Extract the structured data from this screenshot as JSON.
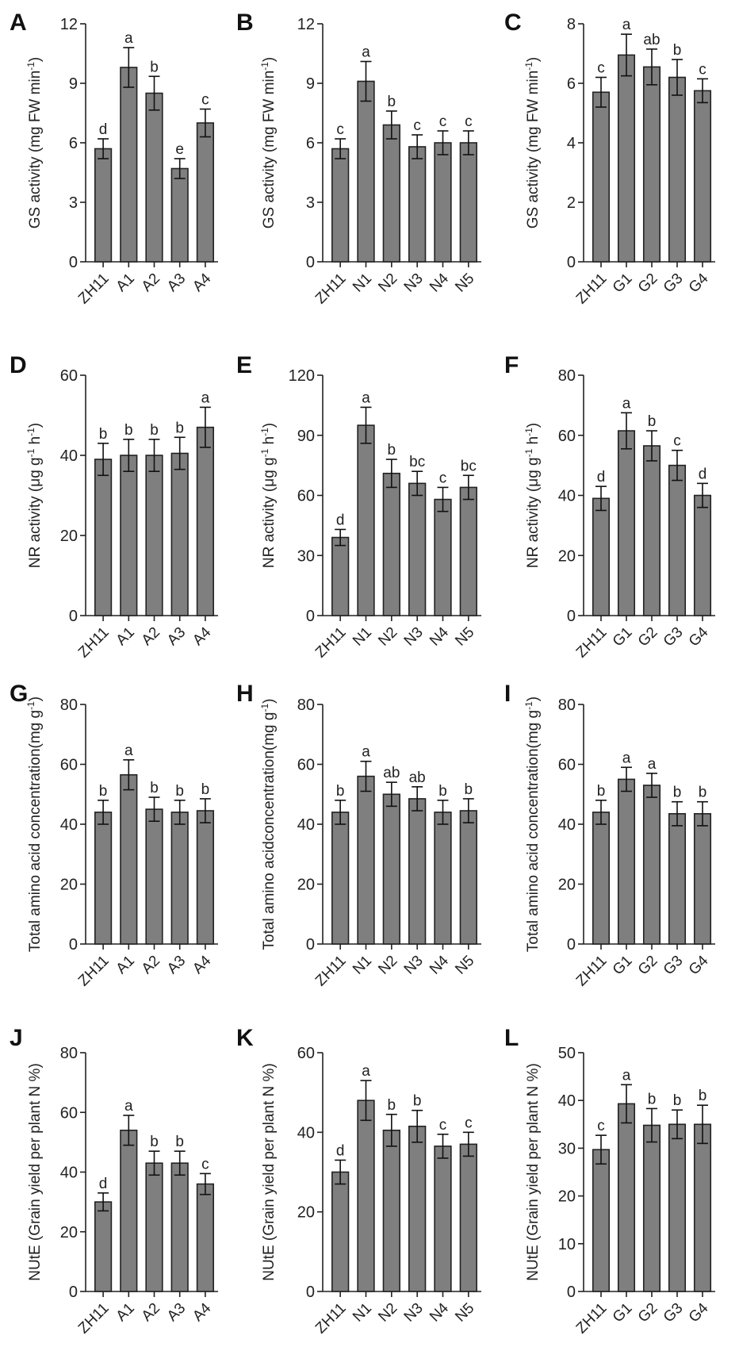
{
  "chart_data": [
    {
      "panel": "A",
      "type": "bar",
      "ylabel": "GS activity (mg FW min",
      "ylabel_sup": "-1",
      "ylabel_tail": ")",
      "categories": [
        "ZH11",
        "A1",
        "A2",
        "A3",
        "A4"
      ],
      "values": [
        5.7,
        9.8,
        8.5,
        4.7,
        7.0
      ],
      "errors": [
        0.5,
        1.0,
        0.85,
        0.5,
        0.7
      ],
      "significance": [
        "d",
        "a",
        "b",
        "e",
        "c"
      ],
      "ylim": [
        0,
        12
      ],
      "yticks": [
        0,
        3,
        6,
        9,
        12
      ]
    },
    {
      "panel": "B",
      "type": "bar",
      "ylabel": "GS activity (mg FW min",
      "ylabel_sup": "-1",
      "ylabel_tail": ")",
      "categories": [
        "ZH11",
        "N1",
        "N2",
        "N3",
        "N4",
        "N5"
      ],
      "values": [
        5.7,
        9.1,
        6.9,
        5.8,
        6.0,
        6.0
      ],
      "errors": [
        0.5,
        1.0,
        0.7,
        0.6,
        0.6,
        0.6
      ],
      "significance": [
        "c",
        "a",
        "b",
        "c",
        "c",
        "c"
      ],
      "ylim": [
        0,
        12
      ],
      "yticks": [
        0,
        3,
        6,
        9,
        12
      ]
    },
    {
      "panel": "C",
      "type": "bar",
      "ylabel": "GS activity (mg FW min",
      "ylabel_sup": "-1",
      "ylabel_tail": ")",
      "categories": [
        "ZH11",
        "G1",
        "G2",
        "G3",
        "G4"
      ],
      "values": [
        5.7,
        6.95,
        6.55,
        6.2,
        5.75
      ],
      "errors": [
        0.5,
        0.7,
        0.6,
        0.6,
        0.4
      ],
      "significance": [
        "c",
        "a",
        "ab",
        "b",
        "c"
      ],
      "ylim": [
        0,
        8
      ],
      "yticks": [
        0,
        2,
        4,
        6,
        8
      ]
    },
    {
      "panel": "D",
      "type": "bar",
      "ylabel": "NR activity (μg g",
      "ylabel_sup": "-1",
      "ylabel_mid": " h",
      "ylabel_sup2": "-1",
      "ylabel_tail": ")",
      "categories": [
        "ZH11",
        "A1",
        "A2",
        "A3",
        "A4"
      ],
      "values": [
        39,
        40,
        40,
        40.5,
        47
      ],
      "errors": [
        4,
        4,
        4,
        4,
        5
      ],
      "significance": [
        "b",
        "b",
        "b",
        "b",
        "a"
      ],
      "ylim": [
        0,
        60
      ],
      "yticks": [
        0,
        20,
        40,
        60
      ]
    },
    {
      "panel": "E",
      "type": "bar",
      "ylabel": "NR activity (μg g",
      "ylabel_sup": "-1",
      "ylabel_mid": " h",
      "ylabel_sup2": "-1",
      "ylabel_tail": ")",
      "categories": [
        "ZH11",
        "N1",
        "N2",
        "N3",
        "N4",
        "N5"
      ],
      "values": [
        39,
        95,
        71,
        66,
        58,
        64
      ],
      "errors": [
        4,
        9,
        7,
        6,
        6,
        6
      ],
      "significance": [
        "d",
        "a",
        "b",
        "bc",
        "c",
        "bc"
      ],
      "ylim": [
        0,
        120
      ],
      "yticks": [
        0,
        30,
        60,
        90,
        120
      ]
    },
    {
      "panel": "F",
      "type": "bar",
      "ylabel": "NR activity (μg g",
      "ylabel_sup": "-1",
      "ylabel_mid": " h",
      "ylabel_sup2": "-1",
      "ylabel_tail": ")",
      "categories": [
        "ZH11",
        "G1",
        "G2",
        "G3",
        "G4"
      ],
      "values": [
        39,
        61.5,
        56.5,
        50,
        40
      ],
      "errors": [
        4,
        6,
        5,
        5,
        4
      ],
      "significance": [
        "d",
        "a",
        "b",
        "c",
        "d"
      ],
      "ylim": [
        0,
        80
      ],
      "yticks": [
        0,
        20,
        40,
        60,
        80
      ]
    },
    {
      "panel": "G",
      "type": "bar",
      "ylabel": "Total amino acid concentration(mg g",
      "ylabel_sup": "-1",
      "ylabel_tail": ")",
      "categories": [
        "ZH11",
        "A1",
        "A2",
        "A3",
        "A4"
      ],
      "values": [
        44,
        56.5,
        45,
        44,
        44.5
      ],
      "errors": [
        4,
        5,
        4,
        4,
        4
      ],
      "significance": [
        "b",
        "a",
        "b",
        "b",
        "b"
      ],
      "ylim": [
        0,
        80
      ],
      "yticks": [
        0,
        20,
        40,
        60,
        80
      ]
    },
    {
      "panel": "H",
      "type": "bar",
      "ylabel": "Total amino acidconcentration(mg g",
      "ylabel_sup": "-1",
      "ylabel_tail": ")",
      "categories": [
        "ZH11",
        "N1",
        "N2",
        "N3",
        "N4",
        "N5"
      ],
      "values": [
        44,
        56,
        50,
        48.5,
        44,
        44.5
      ],
      "errors": [
        4,
        5,
        4,
        4,
        4,
        4
      ],
      "significance": [
        "b",
        "a",
        "ab",
        "ab",
        "b",
        "b"
      ],
      "ylim": [
        0,
        80
      ],
      "yticks": [
        0,
        20,
        40,
        60,
        80
      ]
    },
    {
      "panel": "I",
      "type": "bar",
      "ylabel": "Total amino acid concentration(mg g",
      "ylabel_sup": "-1",
      "ylabel_tail": ")",
      "categories": [
        "ZH11",
        "G1",
        "G2",
        "G3",
        "G4"
      ],
      "values": [
        44,
        55,
        53,
        43.5,
        43.5
      ],
      "errors": [
        4,
        4,
        4,
        4,
        4
      ],
      "significance": [
        "b",
        "a",
        "a",
        "b",
        "b"
      ],
      "ylim": [
        0,
        80
      ],
      "yticks": [
        0,
        20,
        40,
        60,
        80
      ]
    },
    {
      "panel": "J",
      "type": "bar",
      "ylabel": "NUtE (Grain yield per plant N %)",
      "categories": [
        "ZH11",
        "A1",
        "A2",
        "A3",
        "A4"
      ],
      "values": [
        30,
        54,
        43,
        43,
        36
      ],
      "errors": [
        3,
        5,
        4,
        4,
        3.5
      ],
      "significance": [
        "d",
        "a",
        "b",
        "b",
        "c"
      ],
      "ylim": [
        0,
        80
      ],
      "yticks": [
        0,
        20,
        40,
        60,
        80
      ]
    },
    {
      "panel": "K",
      "type": "bar",
      "ylabel": "NUtE (Grain yield per plant N %)",
      "categories": [
        "ZH11",
        "N1",
        "N2",
        "N3",
        "N4",
        "N5"
      ],
      "values": [
        30,
        48,
        40.5,
        41.5,
        36.5,
        37
      ],
      "errors": [
        3,
        5,
        4,
        4,
        3,
        3
      ],
      "significance": [
        "d",
        "a",
        "b",
        "b",
        "c",
        "c"
      ],
      "ylim": [
        0,
        60
      ],
      "yticks": [
        0,
        20,
        40,
        60
      ]
    },
    {
      "panel": "L",
      "type": "bar",
      "ylabel": "NUtE (Grain yield per plant N %)",
      "categories": [
        "ZH11",
        "G1",
        "G2",
        "G3",
        "G4"
      ],
      "values": [
        29.7,
        39.3,
        34.8,
        35,
        35
      ],
      "errors": [
        3,
        4,
        3.5,
        3,
        4
      ],
      "significance": [
        "c",
        "a",
        "b",
        "b",
        "b"
      ],
      "ylim": [
        0,
        50
      ],
      "yticks": [
        0,
        10,
        20,
        30,
        40,
        50
      ]
    }
  ],
  "colors": {
    "bar_fill": "#7f7f7f",
    "ink": "#222222"
  }
}
